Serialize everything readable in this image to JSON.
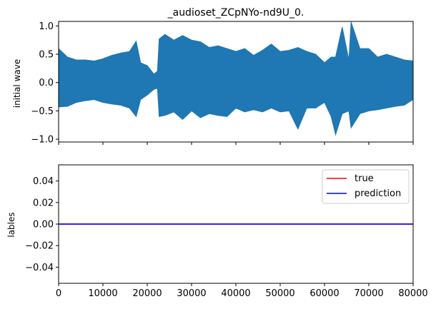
{
  "chart_data": [
    {
      "type": "line",
      "title": "_audioset_ZCpNYo-nd9U_0.",
      "xlabel": "",
      "ylabel": "initial wave",
      "xlim": [
        0,
        80000
      ],
      "ylim": [
        -1.05,
        1.08
      ],
      "yticks": [
        -1.0,
        -0.5,
        0.0,
        0.5,
        1.0
      ],
      "ytick_labels": [
        "−1.0",
        "−0.5",
        "0.0",
        "0.5",
        "1.0"
      ],
      "xticks": [
        0,
        10000,
        20000,
        30000,
        40000,
        50000,
        60000,
        70000,
        80000
      ],
      "xtick_labels_shown": false,
      "grid": false,
      "series": [
        {
          "color": "#1f77b4",
          "style": "dense audio waveform (envelope)",
          "x": [
            0,
            2000,
            4000,
            6000,
            8000,
            10000,
            12000,
            14000,
            16000,
            17500,
            18500,
            20000,
            21500,
            22300,
            22700,
            24000,
            26000,
            28000,
            30000,
            32000,
            34000,
            36000,
            38000,
            40000,
            42000,
            44000,
            46000,
            48000,
            50000,
            52000,
            54000,
            56000,
            58000,
            60000,
            61500,
            62500,
            64000,
            65500,
            66000,
            68000,
            70000,
            72000,
            74000,
            76000,
            78000,
            80000
          ],
          "max": [
            0.6,
            0.45,
            0.4,
            0.4,
            0.38,
            0.42,
            0.48,
            0.52,
            0.55,
            0.73,
            0.35,
            0.3,
            0.15,
            0.2,
            0.77,
            0.85,
            0.75,
            0.83,
            0.75,
            0.72,
            0.62,
            0.65,
            0.6,
            0.55,
            0.6,
            0.48,
            0.57,
            0.68,
            0.55,
            0.57,
            0.62,
            0.55,
            0.5,
            0.35,
            0.45,
            0.45,
            0.98,
            0.4,
            1.07,
            0.6,
            0.6,
            0.45,
            0.5,
            0.45,
            0.4,
            0.38
          ],
          "min": [
            -0.43,
            -0.42,
            -0.35,
            -0.32,
            -0.3,
            -0.35,
            -0.38,
            -0.4,
            -0.45,
            -0.6,
            -0.3,
            -0.22,
            -0.12,
            -0.1,
            -0.6,
            -0.58,
            -0.52,
            -0.65,
            -0.5,
            -0.62,
            -0.55,
            -0.58,
            -0.6,
            -0.45,
            -0.52,
            -0.48,
            -0.52,
            -0.45,
            -0.52,
            -0.5,
            -0.82,
            -0.45,
            -0.45,
            -0.35,
            -0.6,
            -0.92,
            -0.55,
            -0.5,
            -0.8,
            -0.55,
            -0.5,
            -0.48,
            -0.45,
            -0.42,
            -0.4,
            -0.3
          ]
        }
      ]
    },
    {
      "type": "line",
      "title": "",
      "xlabel": "",
      "ylabel": "lables",
      "xlim": [
        0,
        80000
      ],
      "ylim": [
        -0.055,
        0.055
      ],
      "yticks": [
        -0.04,
        -0.02,
        0.0,
        0.02,
        0.04
      ],
      "ytick_labels": [
        "−0.04",
        "−0.02",
        "0.00",
        "0.02",
        "0.04"
      ],
      "xticks": [
        0,
        10000,
        20000,
        30000,
        40000,
        50000,
        60000,
        70000,
        80000
      ],
      "xtick_labels": [
        "0",
        "10000",
        "20000",
        "30000",
        "40000",
        "50000",
        "60000",
        "70000",
        "80000"
      ],
      "grid": false,
      "legend": "top-right",
      "series": [
        {
          "name": "true",
          "color": "#ff0000",
          "x": [
            0,
            80000
          ],
          "y": [
            0,
            0
          ]
        },
        {
          "name": "prediction",
          "color": "#0000ff",
          "x": [
            0,
            80000
          ],
          "y": [
            0,
            0
          ]
        }
      ]
    }
  ]
}
